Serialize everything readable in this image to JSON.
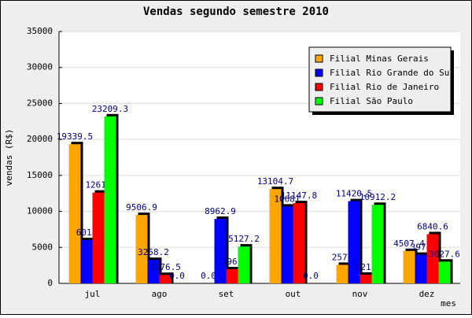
{
  "chart_data": {
    "type": "bar",
    "title": "Vendas segundo semestre 2010",
    "y_label": "vendas (R$)",
    "x_label": "mes",
    "categories": [
      "jul",
      "ago",
      "set",
      "out",
      "nov",
      "dez"
    ],
    "series": [
      {
        "name": "Filial Minas Gerais",
        "color": "#ffa500",
        "values": [
          19339.5,
          9506.9,
          0,
          13104.7,
          2577,
          4507.4
        ],
        "value_labels": [
          "19339.5",
          "9506.9",
          "0.0",
          "13104.7",
          "2577",
          "4507.4"
        ]
      },
      {
        "name": "Filial Rio Grande do Sul",
        "color": "#0000ff",
        "values": [
          6011,
          3258.2,
          8962.9,
          10681,
          11420.5,
          3978
        ],
        "value_labels": [
          "6011",
          "3258.2",
          "8962.9",
          "10681",
          "11420.5",
          "3978"
        ]
      },
      {
        "name": "Filial Rio de Janeiro",
        "color": "#ff0000",
        "values": [
          12617,
          1176.5,
          1965,
          11147.8,
          1215,
          6840.6
        ],
        "value_labels": [
          "12617",
          "1176.5",
          "1965",
          "11147.8",
          "1215",
          "6840.6"
        ]
      },
      {
        "name": "Filial São Paulo",
        "color": "#00ff00",
        "values": [
          23209.3,
          0,
          5127.2,
          0,
          10912.2,
          3027.6
        ],
        "value_labels": [
          "23209.3",
          "0.0",
          "5127.2",
          "0.0",
          "10912.2",
          "3027.6"
        ]
      }
    ],
    "ylim": [
      0,
      35000
    ],
    "yticks": [
      0,
      5000,
      10000,
      15000,
      20000,
      25000,
      30000,
      35000
    ],
    "grid": true,
    "legend": "top-right"
  }
}
